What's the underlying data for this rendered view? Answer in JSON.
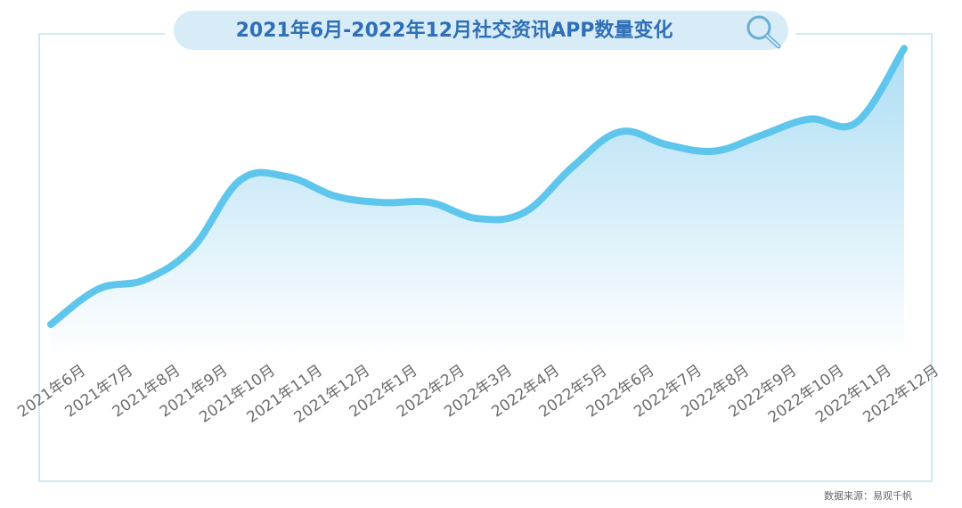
{
  "chart_data": {
    "type": "area",
    "title": "2021年6月-2022年12月社交资讯APP数量变化",
    "categories": [
      "2021年6月",
      "2021年7月",
      "2021年8月",
      "2021年9月",
      "2021年10月",
      "2021年11月",
      "2021年12月",
      "2022年1月",
      "2022年2月",
      "2022年3月",
      "2022年4月",
      "2022年5月",
      "2022年6月",
      "2022年7月",
      "2022年8月",
      "2022年9月",
      "2022年10月",
      "2022年11月",
      "2022年12月"
    ],
    "series": [
      {
        "values": [
          10,
          21,
          24,
          34,
          55,
          56,
          50,
          48,
          48,
          43,
          45,
          59,
          70,
          66,
          64,
          69,
          74,
          73,
          96
        ]
      }
    ],
    "ylim": [
      0,
      100
    ],
    "grid": false,
    "legend": "none",
    "colors": {
      "line": "#5ec6ec",
      "fill_top": "#a9dcf3",
      "fill_bottom": "#ffffff",
      "frame": "#bfe0f3",
      "title_bg": "#d8ecf8",
      "title_text": "#2f6fb5"
    }
  },
  "header": {
    "search_icon": "magnifier-icon"
  },
  "footer": {
    "source": "数据来源：易观千帆"
  }
}
